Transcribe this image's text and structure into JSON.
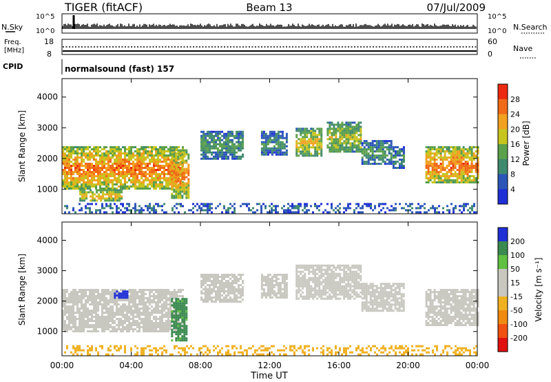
{
  "header": {
    "radar": "TIGER (fitACF)",
    "beam": "Beam 13",
    "date": "07/Jul/2009"
  },
  "strip": {
    "nsky_label": "N.Sky",
    "nsky_top": "10^5",
    "nsky_bottom": "10^0",
    "nsearch_label": "N.Search",
    "nsearch_top": "10^5",
    "nsearch_bottom": "10^0",
    "freq_label_line1": "Freq.",
    "freq_label_line2": "[MHz]",
    "freq_top": "18",
    "freq_bottom": "8",
    "nave_label": "Nave",
    "nave_top": "60",
    "nave_bottom": "0",
    "cpid_label": "CPID",
    "cpid_value": "normalsound (fast) 157"
  },
  "colors": {
    "power_scale": [
      "#1f2fd6",
      "#2b56b8",
      "#3f8a6e",
      "#5ba04a",
      "#c8c41e",
      "#f2a020",
      "#f06a18",
      "#ec2a10"
    ],
    "velocity_scale": [
      "#e01010",
      "#f05010",
      "#f08a10",
      "#f0b020",
      "#c8c8c0",
      "#c8c8c0",
      "#60c040",
      "#3a8a50",
      "#1f2fd6"
    ]
  },
  "chart_data": [
    {
      "type": "heatmap",
      "name": "power",
      "ylabel": "Slant Range [km]",
      "ylim": [
        200,
        4600
      ],
      "yticks": [
        "1000",
        "2000",
        "3000",
        "4000"
      ],
      "xticks": [
        "00:00",
        "04:00",
        "08:00",
        "12:00",
        "16:00",
        "20:00",
        "00:00"
      ],
      "xlim_hours": [
        0,
        24
      ],
      "colorbar": {
        "label": "Power [dB]",
        "ticks": [
          "4",
          "8",
          "12",
          "16",
          "20",
          "24",
          "28"
        ],
        "range": [
          0,
          32
        ]
      },
      "echo_regions": [
        {
          "start_h": 0.0,
          "end_h": 7.0,
          "range_km": [
            1000,
            2400
          ],
          "power_db": 26
        },
        {
          "start_h": 6.3,
          "end_h": 7.3,
          "range_km": [
            700,
            2300
          ],
          "power_db": 24
        },
        {
          "start_h": 1.0,
          "end_h": 3.5,
          "range_km": [
            650,
            1000
          ],
          "power_db": 22
        },
        {
          "start_h": 8.0,
          "end_h": 10.5,
          "range_km": [
            2000,
            2900
          ],
          "power_db": 12
        },
        {
          "start_h": 11.5,
          "end_h": 13.0,
          "range_km": [
            2100,
            2900
          ],
          "power_db": 10
        },
        {
          "start_h": 13.5,
          "end_h": 15.0,
          "range_km": [
            2100,
            3000
          ],
          "power_db": 20
        },
        {
          "start_h": 15.3,
          "end_h": 17.3,
          "range_km": [
            2200,
            3200
          ],
          "power_db": 18
        },
        {
          "start_h": 17.3,
          "end_h": 19.0,
          "range_km": [
            1800,
            2600
          ],
          "power_db": 12
        },
        {
          "start_h": 19.1,
          "end_h": 19.8,
          "range_km": [
            1700,
            2400
          ],
          "power_db": 10
        },
        {
          "start_h": 21.0,
          "end_h": 24.0,
          "range_km": [
            1200,
            2400
          ],
          "power_db": 26
        },
        {
          "start_h": 0.0,
          "end_h": 24.0,
          "range_km": [
            250,
            550
          ],
          "power_db": 8
        }
      ]
    },
    {
      "type": "heatmap",
      "name": "velocity",
      "ylabel": "Slant Range [km]",
      "ylim": [
        200,
        4600
      ],
      "yticks": [
        "1000",
        "2000",
        "3000",
        "4000"
      ],
      "xticks": [
        "00:00",
        "04:00",
        "08:00",
        "12:00",
        "16:00",
        "20:00",
        "00:00"
      ],
      "xlabel": "Time UT",
      "xlim_hours": [
        0,
        24
      ],
      "colorbar": {
        "label": "Velocity [m s⁻¹]",
        "ticks": [
          "200",
          "100",
          "50",
          "15",
          "-15",
          "-50",
          "-100",
          "-200"
        ]
      },
      "echo_regions": [
        {
          "start_h": 0.0,
          "end_h": 7.0,
          "range_km": [
            1000,
            2400
          ],
          "velocity_ms": 0
        },
        {
          "start_h": 6.3,
          "end_h": 7.2,
          "range_km": [
            700,
            2100
          ],
          "velocity_ms": 60
        },
        {
          "start_h": 3.0,
          "end_h": 3.8,
          "range_km": [
            2100,
            2350
          ],
          "velocity_ms": 200
        },
        {
          "start_h": 8.0,
          "end_h": 10.5,
          "range_km": [
            2000,
            2900
          ],
          "velocity_ms": 0
        },
        {
          "start_h": 11.5,
          "end_h": 13.0,
          "range_km": [
            2100,
            2900
          ],
          "velocity_ms": 0
        },
        {
          "start_h": 13.5,
          "end_h": 17.3,
          "range_km": [
            2100,
            3200
          ],
          "velocity_ms": 0
        },
        {
          "start_h": 17.3,
          "end_h": 19.8,
          "range_km": [
            1700,
            2600
          ],
          "velocity_ms": 0
        },
        {
          "start_h": 21.0,
          "end_h": 24.0,
          "range_km": [
            1200,
            2400
          ],
          "velocity_ms": 0
        },
        {
          "start_h": 0.0,
          "end_h": 24.0,
          "range_km": [
            250,
            550
          ],
          "velocity_ms": -30
        }
      ]
    }
  ]
}
